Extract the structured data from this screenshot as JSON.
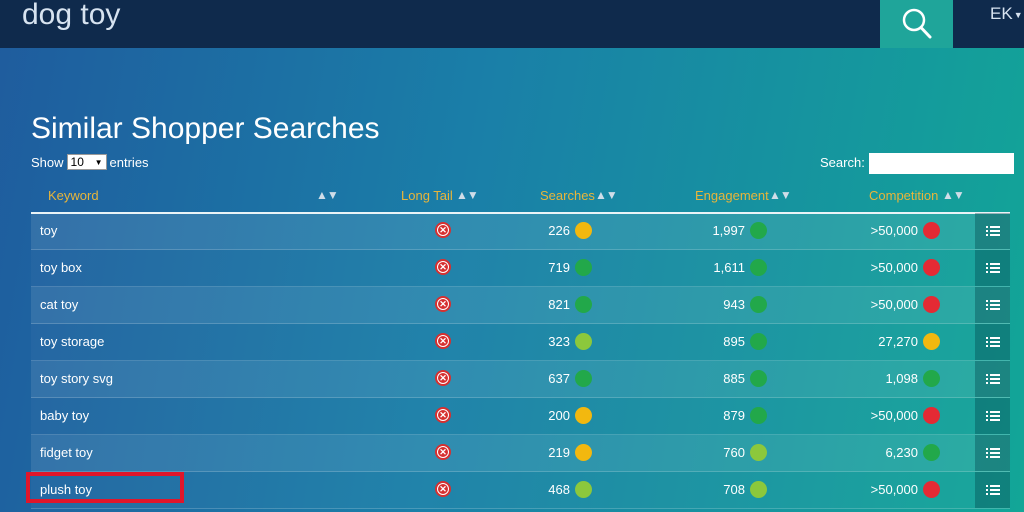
{
  "header": {
    "query": "dog toy",
    "user": "EK"
  },
  "page": {
    "title": "Similar Shopper Searches"
  },
  "controls": {
    "show_label": "Show",
    "entries_value": "10",
    "entries_label": "entries",
    "search_label": "Search:",
    "search_value": ""
  },
  "columns": [
    "Keyword",
    "Long Tail",
    "Searches",
    "Engagement",
    "Competition"
  ],
  "colors": {
    "green": "#22a84a",
    "lightgreen": "#8cc83c",
    "yellow": "#f2b80f",
    "red": "#e42a34",
    "header_text": "#e8b53a",
    "highlight": "#e0162b"
  },
  "rows": [
    {
      "keyword": "toy",
      "long_tail_icon": "x-circle-icon",
      "searches": "226",
      "searches_status": "yellow",
      "engagement": "1,997",
      "engagement_status": "green",
      "competition": ">50,000",
      "competition_status": "red"
    },
    {
      "keyword": "toy box",
      "long_tail_icon": "x-circle-icon",
      "searches": "719",
      "searches_status": "green",
      "engagement": "1,611",
      "engagement_status": "green",
      "competition": ">50,000",
      "competition_status": "red"
    },
    {
      "keyword": "cat toy",
      "long_tail_icon": "x-circle-icon",
      "searches": "821",
      "searches_status": "green",
      "engagement": "943",
      "engagement_status": "green",
      "competition": ">50,000",
      "competition_status": "red"
    },
    {
      "keyword": "toy storage",
      "long_tail_icon": "x-circle-icon",
      "searches": "323",
      "searches_status": "lightgreen",
      "engagement": "895",
      "engagement_status": "green",
      "competition": "27,270",
      "competition_status": "yellow"
    },
    {
      "keyword": "toy story svg",
      "long_tail_icon": "x-circle-icon",
      "searches": "637",
      "searches_status": "green",
      "engagement": "885",
      "engagement_status": "green",
      "competition": "1,098",
      "competition_status": "green"
    },
    {
      "keyword": "baby toy",
      "long_tail_icon": "x-circle-icon",
      "searches": "200",
      "searches_status": "yellow",
      "engagement": "879",
      "engagement_status": "green",
      "competition": ">50,000",
      "competition_status": "red"
    },
    {
      "keyword": "fidget toy",
      "long_tail_icon": "x-circle-icon",
      "searches": "219",
      "searches_status": "yellow",
      "engagement": "760",
      "engagement_status": "lightgreen",
      "competition": "6,230",
      "competition_status": "green"
    },
    {
      "keyword": "plush toy",
      "long_tail_icon": "x-circle-icon",
      "searches": "468",
      "searches_status": "lightgreen",
      "engagement": "708",
      "engagement_status": "lightgreen",
      "competition": ">50,000",
      "competition_status": "red"
    }
  ]
}
